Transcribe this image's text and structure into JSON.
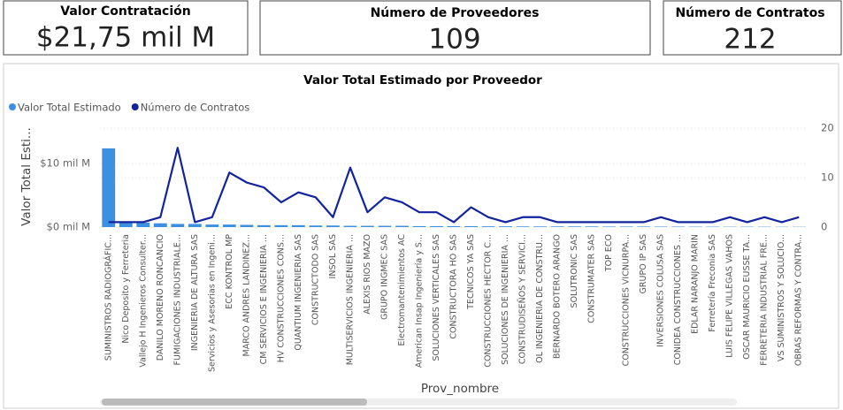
{
  "cards": [
    {
      "label": "Valor Contratación",
      "value": "$21,75 mil M"
    },
    {
      "label": "Número de Proveedores",
      "value": "109"
    },
    {
      "label": "Número de Contratos",
      "value": "212"
    }
  ],
  "chart_data": {
    "type": "combo",
    "title": "Valor Total Estimado por Proveedor",
    "x_label": "Prov_nombre",
    "y_label": "Valor Total Esti...",
    "categories": [
      "SUMINISTROS RADIOGRÁFIC...",
      "Nico Deposito y Ferreteria",
      "Vallejo H Ingenieros Consulter...",
      "DANILO MORENO RONCANCIO",
      "FUMIGACIONES INDUSTRIALE...",
      "INGENIERIA DE ALTURA SAS",
      "Servicios y Asesorias en Ingeni...",
      "ECC KONTROL MP",
      "MARCO ANDRES LANDINEZ...",
      "CM SERVICIOS E INGENIERIA ...",
      "HV CONSTRUCCIONES CONS...",
      "QUANTIUM INGENIERIA SAS",
      "CONSTRUCTODO SAS",
      "INSOL SAS",
      "MULTISERVICIOS INGENIERIA ...",
      "ALEXIS RIOS MAZO",
      "GRUPO INGMEC SAS",
      "Electromantenimientos AC",
      "American Insap Ingeniería y S...",
      "SOLUCIONES VERTICALES SAS",
      "CONSTRUCTORA HO SAS",
      "TECNICOS YA SAS",
      "CONSTRUCCIONES HECTOR C...",
      "SOLUCIONES DE INGENIERIA ...",
      "CONSTRUDISEÑOS Y SERVICI...",
      "OL INGENIERIA DE CONSTRU...",
      "BERNARDO BOTERO ARANGO",
      "SOLUTRONIC SAS",
      "CONSTRUMATER SAS",
      "TOP ECO",
      "CONSTRUCCIONES VICNURPA...",
      "GRUPO IP SAS",
      "INVERSIONES COLUSA SAS",
      "CONIDEA CONSTRUCCIONES ...",
      "EDLAR NARANJO MARIN",
      "Ferretería Freconia SAS",
      "LUIS FELIPE VILLEGAS VAHOS",
      "OSCAR MAURICIO EUSSE TA...",
      "FERRETERIA INDUSTRIAL FRE...",
      "VS SUMINISTROS Y SOLUCIO...",
      "OBRAS REFORMAS Y CONTRA..."
    ],
    "series": [
      {
        "name": "Valor Total Estimado",
        "type": "bar",
        "color": "#3d8fe0",
        "values": [
          12.4,
          0.8,
          0.7,
          0.6,
          0.5,
          0.5,
          0.4,
          0.4,
          0.35,
          0.3,
          0.3,
          0.3,
          0.25,
          0.25,
          0.2,
          0.2,
          0.2,
          0.2,
          0.15,
          0.15,
          0.15,
          0.15,
          0.12,
          0.12,
          0.1,
          0.1,
          0.1,
          0.1,
          0.1,
          0.08,
          0.08,
          0.08,
          0.07,
          0.07,
          0.06,
          0.06,
          0.05,
          0.05,
          0.05,
          0.04,
          0.04
        ]
      },
      {
        "name": "Número de Contratos",
        "type": "line",
        "axis": "y2",
        "color": "#12239e",
        "values": [
          1,
          1,
          1,
          2,
          16,
          1,
          2,
          11,
          9,
          8,
          5,
          7,
          6,
          2,
          12,
          3,
          6,
          5,
          3,
          3,
          1,
          4,
          2,
          1,
          2,
          2,
          1,
          1,
          1,
          1,
          1,
          1,
          2,
          1,
          1,
          1,
          2,
          1,
          2,
          1,
          2
        ]
      }
    ],
    "ylim": [
      0,
      16
    ],
    "yticks": [
      {
        "value": 0,
        "label": "$0 mil M"
      },
      {
        "value": 10,
        "label": "$10 mil M"
      }
    ],
    "y2lim": [
      0,
      20.5
    ],
    "y2ticks": [
      0,
      10,
      20
    ],
    "grid": true,
    "legend": "top-left"
  }
}
